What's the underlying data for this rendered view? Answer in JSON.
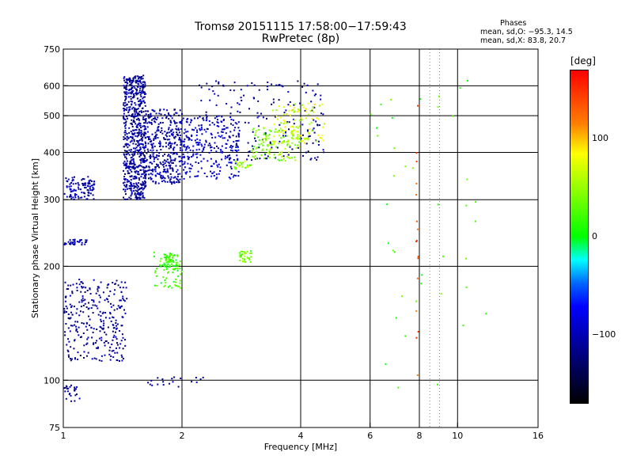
{
  "header": {
    "title": "Tromsø 20151115 17:58:00−17:59:43",
    "subtitle": "RwPretec (8p)",
    "stats_heading": "Phases",
    "stats_o": "mean, sd,O: −95.3, 14.5",
    "stats_x": "mean, sd,X:  83.8, 20.7"
  },
  "colorbar": {
    "unit": "[deg]",
    "ticks": [
      {
        "label": "100",
        "value": 100
      },
      {
        "label": "0",
        "value": 0
      },
      {
        "label": "−100",
        "value": -100
      }
    ],
    "colors": [
      "#ff0000",
      "#ff7f00",
      "#ffff00",
      "#00ff00",
      "#00ffff",
      "#0066ff",
      "#0000ff",
      "#000000"
    ]
  },
  "chart_data": {
    "type": "scatter",
    "xlabel": "Frequency [MHz]",
    "ylabel": "Stationary phase Virtual Height [km]",
    "x_scale": "log",
    "y_scale": "log",
    "xlim": [
      1,
      16
    ],
    "ylim": [
      75,
      750
    ],
    "x_ticks": [
      1,
      2,
      4,
      6,
      8,
      10,
      16
    ],
    "y_ticks": [
      75,
      100,
      200,
      300,
      400,
      500,
      600,
      750
    ],
    "x_grid": [
      2,
      4,
      6,
      8,
      10
    ],
    "x_minor_grid": [
      8.5,
      9
    ],
    "y_grid": [
      100,
      200,
      300,
      400,
      500,
      600
    ],
    "grid": true,
    "color_scale_deg": [
      -170,
      170
    ],
    "series": [
      {
        "x": [
          1.0,
          1.2
        ],
        "y": [
          300,
          345
        ],
        "phase": -105,
        "n": 110
      },
      {
        "x": [
          1.0,
          1.15
        ],
        "y": [
          228,
          236
        ],
        "phase": -100,
        "n": 35
      },
      {
        "x": [
          1.0,
          1.45
        ],
        "y": [
          112,
          185
        ],
        "phase": -110,
        "n": 300
      },
      {
        "x": [
          1.0,
          1.1
        ],
        "y": [
          88,
          97
        ],
        "phase": -108,
        "n": 25
      },
      {
        "x": [
          1.42,
          1.62
        ],
        "y": [
          300,
          640
        ],
        "phase": -110,
        "n": 650
      },
      {
        "x": [
          1.6,
          2.0
        ],
        "y": [
          330,
          520
        ],
        "phase": -105,
        "n": 380
      },
      {
        "x": [
          1.7,
          2.0
        ],
        "y": [
          175,
          220
        ],
        "phase": 20,
        "n": 60
      },
      {
        "x": [
          1.8,
          1.95
        ],
        "y": [
          195,
          215
        ],
        "phase": 15,
        "n": 60
      },
      {
        "x": [
          2.0,
          2.8
        ],
        "y": [
          340,
          500
        ],
        "phase": -90,
        "n": 250
      },
      {
        "x": [
          2.2,
          4.6
        ],
        "y": [
          380,
          620
        ],
        "phase": -110,
        "n": 200
      },
      {
        "x": [
          2.7,
          3.0
        ],
        "y": [
          360,
          380
        ],
        "phase": 50,
        "n": 25
      },
      {
        "x": [
          3.0,
          4.0
        ],
        "y": [
          380,
          470
        ],
        "phase": 45,
        "n": 120
      },
      {
        "x": [
          3.4,
          4.6
        ],
        "y": [
          420,
          540
        ],
        "phase": 70,
        "n": 110
      },
      {
        "x": [
          2.8,
          3.0
        ],
        "y": [
          205,
          220
        ],
        "phase": 35,
        "n": 35
      },
      {
        "x": [
          1.6,
          2.3
        ],
        "y": [
          96,
          102
        ],
        "phase": -100,
        "n": 20
      },
      {
        "x": [
          7.85,
          7.95
        ],
        "y": [
          100,
          580
        ],
        "phase": 140,
        "n": 16
      },
      {
        "x": [
          6.0,
          12.0
        ],
        "y": [
          95,
          660
        ],
        "phase": 20,
        "n": 40
      }
    ]
  }
}
